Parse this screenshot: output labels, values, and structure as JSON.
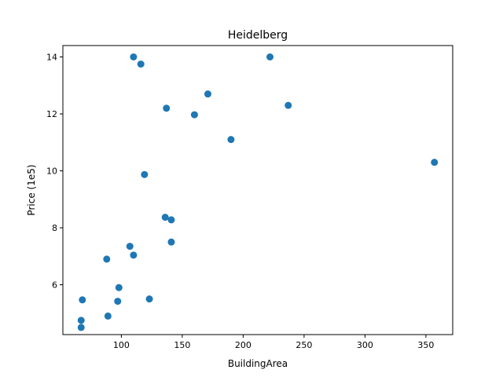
{
  "chart_data": {
    "type": "scatter",
    "title": "Heidelberg",
    "xlabel": "BuildingArea",
    "ylabel": "Price (1e5)",
    "xlim": [
      52,
      372
    ],
    "ylim": [
      4.25,
      14.4
    ],
    "xticks": [
      100,
      150,
      200,
      250,
      300,
      350
    ],
    "yticks": [
      6,
      8,
      10,
      12,
      14
    ],
    "grid": false,
    "marker_color": "#1f77b4",
    "points": [
      {
        "x": 110,
        "y": 14.0
      },
      {
        "x": 116,
        "y": 13.75
      },
      {
        "x": 222,
        "y": 14.0
      },
      {
        "x": 171,
        "y": 12.7
      },
      {
        "x": 237,
        "y": 12.3
      },
      {
        "x": 137,
        "y": 12.2
      },
      {
        "x": 160,
        "y": 11.97
      },
      {
        "x": 190,
        "y": 11.1
      },
      {
        "x": 357,
        "y": 10.3
      },
      {
        "x": 119,
        "y": 9.87
      },
      {
        "x": 136,
        "y": 8.37
      },
      {
        "x": 141,
        "y": 8.28
      },
      {
        "x": 141,
        "y": 7.5
      },
      {
        "x": 107,
        "y": 7.35
      },
      {
        "x": 110,
        "y": 7.04
      },
      {
        "x": 88,
        "y": 6.9
      },
      {
        "x": 98,
        "y": 5.9
      },
      {
        "x": 68,
        "y": 5.47
      },
      {
        "x": 97,
        "y": 5.42
      },
      {
        "x": 123,
        "y": 5.5
      },
      {
        "x": 89,
        "y": 4.9
      },
      {
        "x": 67,
        "y": 4.75
      },
      {
        "x": 67,
        "y": 4.5
      }
    ]
  }
}
